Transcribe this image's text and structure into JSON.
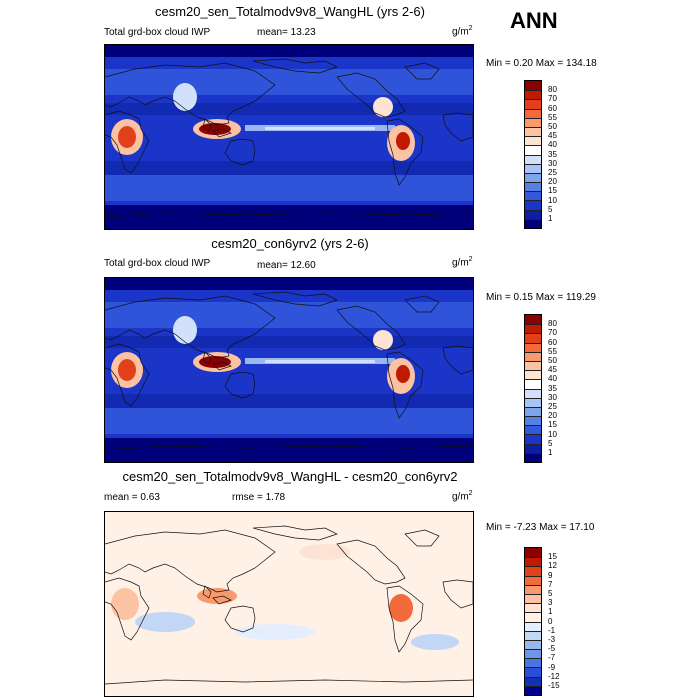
{
  "season": "ANN",
  "panels": [
    {
      "title": "cesm20_sen_Totalmodv9v8_WangHL (yrs 2-6)",
      "left_label": "Total grd-box cloud IWP",
      "mean_text": "mean=  13.23",
      "units": "g/m",
      "units_exp": "2",
      "minmax_text": "Min =   0.20 Max = 134.18",
      "palette": "iwp",
      "levels": [
        "80",
        "70",
        "60",
        "55",
        "50",
        "45",
        "40",
        "35",
        "30",
        "25",
        "20",
        "15",
        "10",
        "5",
        "1"
      ]
    },
    {
      "title": "cesm20_con6yrv2 (yrs 2-6)",
      "left_label": "Total grd-box cloud IWP",
      "mean_text": "mean=  12.60",
      "units": "g/m",
      "units_exp": "2",
      "minmax_text": "Min =   0.15 Max = 119.29",
      "palette": "iwp",
      "levels": [
        "80",
        "70",
        "60",
        "55",
        "50",
        "45",
        "40",
        "35",
        "30",
        "25",
        "20",
        "15",
        "10",
        "5",
        "1"
      ]
    },
    {
      "title": "cesm20_sen_Totalmodv9v8_WangHL - cesm20_con6yrv2",
      "left_label": "mean =   0.63",
      "mean_text": "rmse =   1.78",
      "units": "g/m",
      "units_exp": "2",
      "minmax_text": "Min =  -7.23 Max =  17.10",
      "palette": "diff",
      "levels": [
        "15",
        "12",
        "9",
        "7",
        "5",
        "3",
        "1",
        "0",
        "-1",
        "-3",
        "-5",
        "-7",
        "-9",
        "-12",
        "-15"
      ]
    }
  ],
  "colors": {
    "iwp": [
      "#8b0000",
      "#c21a00",
      "#e2401a",
      "#f26a3a",
      "#f79a6e",
      "#fbc2a4",
      "#fde3d3",
      "#ffffff",
      "#d2e1f9",
      "#a9c4f3",
      "#7ea4ec",
      "#5680e4",
      "#3458dc",
      "#1a35c8",
      "#0d1fa0",
      "#00007a"
    ],
    "diff": [
      "#8b0000",
      "#c21a00",
      "#e2401a",
      "#f26a3a",
      "#f79a6e",
      "#fbc2a4",
      "#fde3d3",
      "#fff1e6",
      "#e4eefc",
      "#c2d6f6",
      "#98b8f0",
      "#6e96e8",
      "#4a74e0",
      "#2a4fd6",
      "#1530b8",
      "#000090"
    ]
  },
  "chart_data": [
    {
      "type": "heatmap",
      "title": "cesm20_sen_Totalmodv9v8_WangHL (yrs 2-6)",
      "variable": "Total grd-box cloud IWP",
      "units": "g/m2",
      "mean": 13.23,
      "min": 0.2,
      "max": 134.18,
      "contour_levels": [
        1,
        5,
        10,
        15,
        20,
        25,
        30,
        35,
        40,
        45,
        50,
        55,
        60,
        70,
        80
      ]
    },
    {
      "type": "heatmap",
      "title": "cesm20_con6yrv2 (yrs 2-6)",
      "variable": "Total grd-box cloud IWP",
      "units": "g/m2",
      "mean": 12.6,
      "min": 0.15,
      "max": 119.29,
      "contour_levels": [
        1,
        5,
        10,
        15,
        20,
        25,
        30,
        35,
        40,
        45,
        50,
        55,
        60,
        70,
        80
      ]
    },
    {
      "type": "heatmap",
      "title": "cesm20_sen_Totalmodv9v8_WangHL - cesm20_con6yrv2",
      "units": "g/m2",
      "mean": 0.63,
      "rmse": 1.78,
      "min": -7.23,
      "max": 17.1,
      "contour_levels": [
        -15,
        -12,
        -9,
        -7,
        -5,
        -3,
        -1,
        0,
        1,
        3,
        5,
        7,
        9,
        12,
        15
      ]
    }
  ]
}
